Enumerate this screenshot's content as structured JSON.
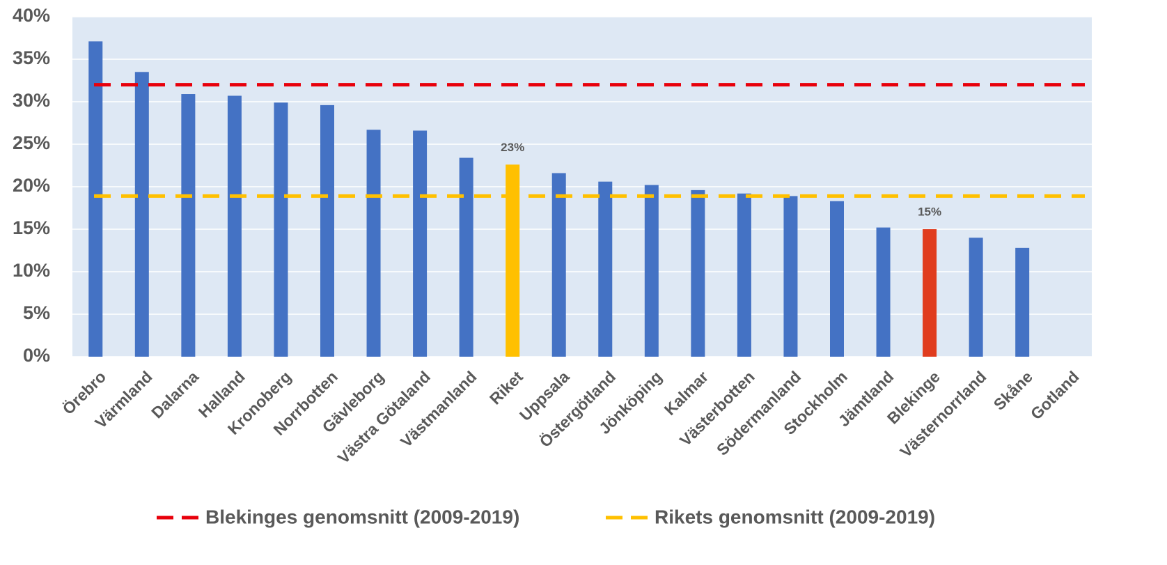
{
  "chart_data": {
    "type": "bar",
    "categories": [
      "Örebro",
      "Värmland",
      "Dalarna",
      "Halland",
      "Kronoberg",
      "Norrbotten",
      "Gävleborg",
      "Västra Götaland",
      "Västmanland",
      "Riket",
      "Uppsala",
      "Östergötland",
      "Jönköping",
      "Kalmar",
      "Västerbotten",
      "Södermanland",
      "Stockholm",
      "Jämtland",
      "Blekinge",
      "Västernorrland",
      "Skåne",
      "Gotland"
    ],
    "values": [
      37.1,
      33.5,
      30.9,
      30.7,
      29.9,
      29.6,
      26.7,
      26.6,
      23.4,
      22.6,
      21.6,
      20.6,
      20.2,
      19.6,
      19.2,
      18.9,
      18.3,
      15.2,
      15.0,
      14.0,
      12.8,
      null
    ],
    "value_labels": [
      null,
      null,
      null,
      null,
      null,
      null,
      null,
      null,
      null,
      "23%",
      null,
      null,
      null,
      null,
      null,
      null,
      null,
      null,
      "15%",
      null,
      null,
      null
    ],
    "colors": [
      "#4472c4",
      "#4472c4",
      "#4472c4",
      "#4472c4",
      "#4472c4",
      "#4472c4",
      "#4472c4",
      "#4472c4",
      "#4472c4",
      "#ffc000",
      "#4472c4",
      "#4472c4",
      "#4472c4",
      "#4472c4",
      "#4472c4",
      "#4472c4",
      "#4472c4",
      "#4472c4",
      "#e03c1e",
      "#4472c4",
      "#4472c4",
      "#4472c4"
    ],
    "reference_lines": [
      {
        "name": "Blekinges genomsnitt (2009-2019)",
        "color": "#e8000b",
        "value": 32.0
      },
      {
        "name": "Rikets genomsnitt (2009-2019)",
        "color": "#ffc000",
        "value": 18.9
      }
    ],
    "ylim": [
      0,
      40
    ],
    "yticks": [
      {
        "value": 0,
        "label": "0%"
      },
      {
        "value": 5,
        "label": "5%"
      },
      {
        "value": 10,
        "label": "10%"
      },
      {
        "value": 15,
        "label": "15%"
      },
      {
        "value": 20,
        "label": "20%"
      },
      {
        "value": 25,
        "label": "25%"
      },
      {
        "value": 30,
        "label": "30%"
      },
      {
        "value": 35,
        "label": "35%"
      },
      {
        "value": 40,
        "label": "40%"
      }
    ],
    "grid": true
  }
}
